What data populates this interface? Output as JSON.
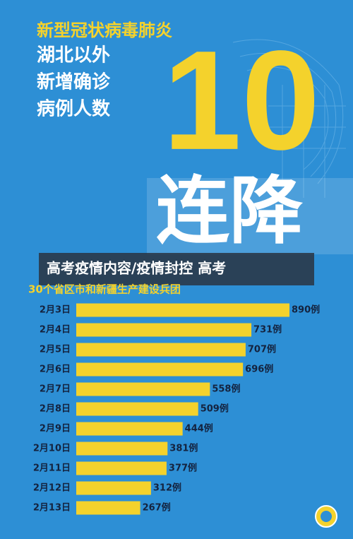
{
  "chart_data": {
    "type": "bar",
    "orientation": "horizontal",
    "title": "新型冠状病毒肺炎",
    "title_lines": [
      "湖北以外",
      "新增确诊",
      "病例人数"
    ],
    "headline": [
      "10",
      "连降"
    ],
    "annotations": [
      "高考疫情内容/疫情封控 高考"
    ],
    "subtitle": "30个省区市和新疆生产建设兵团",
    "categories": [
      "2月3日",
      "2月4日",
      "2月5日",
      "2月6日",
      "2月7日",
      "2月8日",
      "2月9日",
      "2月10日",
      "2月11日",
      "2月12日",
      "2月13日"
    ],
    "values": [
      890,
      731,
      707,
      696,
      558,
      509,
      444,
      381,
      377,
      312,
      267
    ],
    "value_labels": [
      "890例",
      "731例",
      "707例",
      "696例",
      "558例",
      "509例",
      "444例",
      "381例",
      "377例",
      "312例",
      "267例"
    ],
    "color": "#f4d22c"
  }
}
